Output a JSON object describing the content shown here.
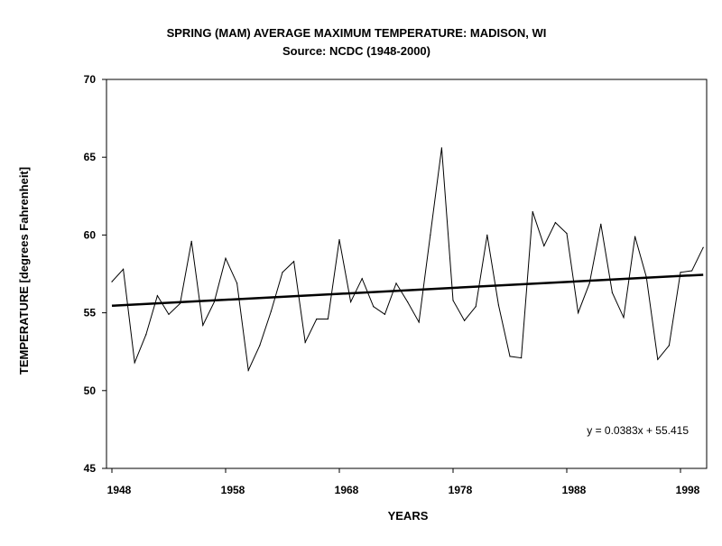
{
  "chart_data": {
    "type": "line",
    "title": "SPRING (MAM) AVERAGE MAXIMUM TEMPERATURE: MADISON, WI",
    "subtitle": "Source: NCDC (1948-2000)",
    "xlabel": "YEARS",
    "ylabel": "TEMPERATURE [degrees Fahrenheit]",
    "xlim": [
      1948,
      2000
    ],
    "ylim": [
      45,
      70
    ],
    "x_ticks": [
      "1948",
      "1958",
      "1968",
      "1978",
      "1988",
      "1998"
    ],
    "y_ticks": [
      "45",
      "50",
      "55",
      "60",
      "65",
      "70"
    ],
    "grid": false,
    "legend": "none",
    "x": [
      1948,
      1949,
      1950,
      1951,
      1952,
      1953,
      1954,
      1955,
      1956,
      1957,
      1958,
      1959,
      1960,
      1961,
      1962,
      1963,
      1964,
      1965,
      1966,
      1967,
      1968,
      1969,
      1970,
      1971,
      1972,
      1973,
      1974,
      1975,
      1976,
      1977,
      1978,
      1979,
      1980,
      1981,
      1982,
      1983,
      1984,
      1985,
      1986,
      1987,
      1988,
      1989,
      1990,
      1991,
      1992,
      1993,
      1994,
      1995,
      1996,
      1997,
      1998,
      1999,
      2000
    ],
    "series": [
      {
        "values": [
          57.0,
          57.8,
          51.8,
          53.6,
          56.1,
          54.9,
          55.6,
          59.6,
          54.2,
          55.7,
          58.5,
          56.9,
          51.3,
          52.9,
          55.1,
          57.6,
          58.3,
          53.1,
          54.6,
          54.6,
          59.7,
          55.7,
          57.2,
          55.4,
          54.9,
          56.9,
          55.7,
          54.4,
          60.0,
          65.6,
          55.8,
          54.5,
          55.4,
          60.0,
          55.5,
          52.2,
          52.1,
          61.5,
          59.3,
          60.8,
          60.1,
          55.0,
          56.9,
          60.7,
          56.3,
          54.7,
          59.9,
          57.3,
          52.0,
          52.9,
          57.6,
          57.7,
          59.2
        ],
        "color": "#000000"
      }
    ],
    "trendline": {
      "slope": 0.0383,
      "intercept": 55.415,
      "label": "y = 0.0383x + 55.415",
      "color": "#000000"
    }
  }
}
